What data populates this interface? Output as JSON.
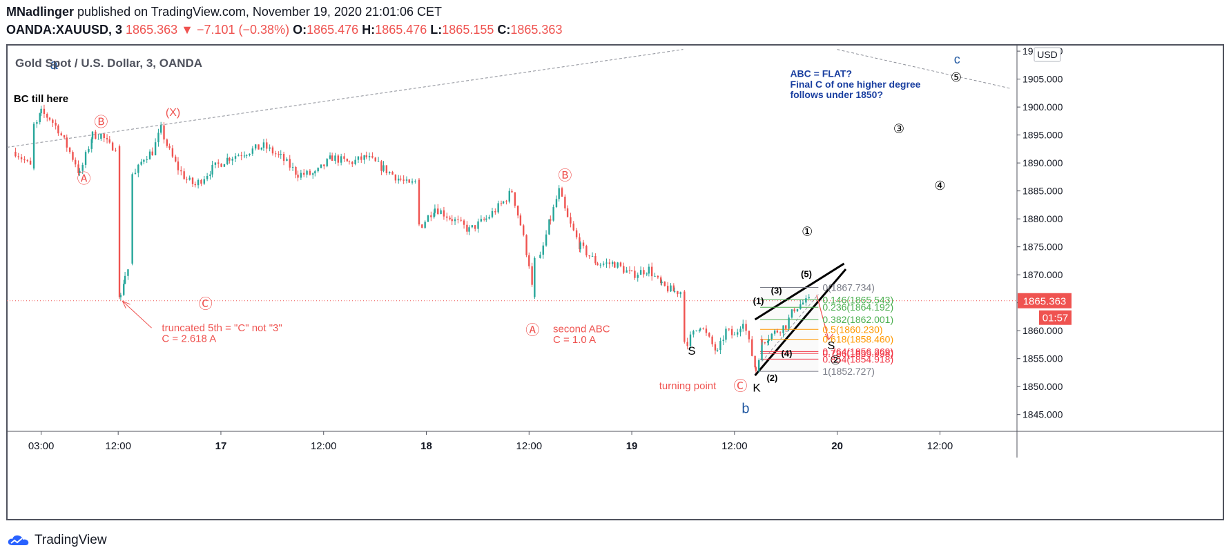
{
  "header": {
    "author": "MNadlinger",
    "published_text": "published on TradingView.com, November 19, 2020 21:01:06 CET",
    "symbol": "OANDA:XAUUSD, 3",
    "last": "1865.363",
    "change": "−7.101 (−0.38%)",
    "open_label": "O:",
    "open": "1865.476",
    "high_label": "H:",
    "high": "1865.476",
    "low_label": "L:",
    "low": "1865.155",
    "close_label": "C:",
    "close": "1865.363"
  },
  "chart_data": {
    "type": "candlestick",
    "title": "Gold Spot / U.S. Dollar, 3, OANDA",
    "currency": "USD",
    "ylim": [
      1842,
      1911
    ],
    "y_ticks": [
      "1845.000",
      "1850.000",
      "1855.000",
      "1860.000",
      "1865.000",
      "1870.000",
      "1875.000",
      "1880.000",
      "1885.000",
      "1890.000",
      "1895.000",
      "1900.000",
      "1905.000",
      "1910.000"
    ],
    "x_ticks": [
      {
        "label": "03:00",
        "t": 3
      },
      {
        "label": "12:00",
        "t": 12
      },
      {
        "label": "17",
        "t": 24
      },
      {
        "label": "12:00",
        "t": 36
      },
      {
        "label": "18",
        "t": 48
      },
      {
        "label": "12:00",
        "t": 60
      },
      {
        "label": "19",
        "t": 72
      },
      {
        "label": "12:00",
        "t": 84
      },
      {
        "label": "20",
        "t": 96
      },
      {
        "label": "12:00",
        "t": 108
      }
    ],
    "price_path": [
      [
        0,
        1892
      ],
      [
        2,
        1889
      ],
      [
        2.5,
        1897
      ],
      [
        3,
        1899
      ],
      [
        4,
        1898
      ],
      [
        5,
        1896
      ],
      [
        6,
        1893
      ],
      [
        7,
        1890
      ],
      [
        7.5,
        1888
      ],
      [
        9,
        1895
      ],
      [
        10,
        1895
      ],
      [
        11,
        1893
      ],
      [
        12,
        1893
      ],
      [
        12.3,
        1866
      ],
      [
        12.8,
        1870
      ],
      [
        13.5,
        1872
      ],
      [
        14,
        1888
      ],
      [
        15,
        1891
      ],
      [
        16,
        1892
      ],
      [
        17,
        1896
      ],
      [
        18,
        1892
      ],
      [
        19,
        1889
      ],
      [
        20,
        1887
      ],
      [
        21,
        1886
      ],
      [
        23,
        1889
      ],
      [
        25,
        1891
      ],
      [
        27,
        1892
      ],
      [
        29,
        1893
      ],
      [
        31,
        1891
      ],
      [
        33,
        1888
      ],
      [
        35,
        1888
      ],
      [
        37,
        1891
      ],
      [
        39,
        1890
      ],
      [
        41,
        1891
      ],
      [
        43,
        1889
      ],
      [
        45,
        1887
      ],
      [
        46,
        1886
      ],
      [
        47,
        1887
      ],
      [
        47.5,
        1879
      ],
      [
        49,
        1882
      ],
      [
        51,
        1880
      ],
      [
        53,
        1878
      ],
      [
        55,
        1880
      ],
      [
        57,
        1883
      ],
      [
        58,
        1885
      ],
      [
        59,
        1879
      ],
      [
        60,
        1872
      ],
      [
        60.5,
        1866
      ],
      [
        61.3,
        1873
      ],
      [
        62.5,
        1880
      ],
      [
        63.5,
        1885
      ],
      [
        64.5,
        1880
      ],
      [
        66,
        1875
      ],
      [
        68,
        1872
      ],
      [
        70,
        1872
      ],
      [
        72,
        1870
      ],
      [
        74,
        1871
      ],
      [
        75.5,
        1868
      ],
      [
        77,
        1867
      ],
      [
        78,
        1867
      ],
      [
        78.5,
        1858
      ],
      [
        80,
        1861
      ],
      [
        82,
        1856
      ],
      [
        83,
        1860
      ],
      [
        84,
        1859
      ],
      [
        85,
        1862
      ],
      [
        86.5,
        1853
      ],
      [
        87.2,
        1858
      ],
      [
        88,
        1859
      ],
      [
        89,
        1860
      ],
      [
        90,
        1861
      ],
      [
        91,
        1864
      ],
      [
        92,
        1865
      ],
      [
        93,
        1865.4
      ]
    ],
    "last_price": "1865.363",
    "countdown": "01:57",
    "fibonacci": [
      {
        "label": "0(1867.734)",
        "price": 1867.734,
        "color": "#787b86"
      },
      {
        "label": "0.146(1865.543)",
        "price": 1865.543,
        "color": "#4caf50"
      },
      {
        "label": "0.236(1864.192)",
        "price": 1864.192,
        "color": "#4caf50"
      },
      {
        "label": "0.382(1862.001)",
        "price": 1862.001,
        "color": "#4caf50"
      },
      {
        "label": "0.5(1860.230)",
        "price": 1860.23,
        "color": "#ff9800"
      },
      {
        "label": "0.618(1858.460)",
        "price": 1858.46,
        "color": "#ff9800"
      },
      {
        "label": "0.764(1856.269)",
        "price": 1856.269,
        "color": "#f23645"
      },
      {
        "label": "0.786(1855.938)",
        "price": 1855.938,
        "color": "#f23645"
      },
      {
        "label": "0.854(1854.918)",
        "price": 1854.918,
        "color": "#f23645"
      },
      {
        "label": "1(1852.727)",
        "price": 1852.727,
        "color": "#787b86"
      }
    ],
    "annotations": [
      {
        "text": "a",
        "t": 4.5,
        "y": 1906.8,
        "color": "#1e56a0",
        "size": 20
      },
      {
        "text": "BC till here",
        "t": -0.2,
        "y": 1900.9,
        "color": "#000000",
        "size": 15,
        "anchor": "start",
        "bold": true
      },
      {
        "text": "Ⓑ",
        "t": 10,
        "y": 1896.5,
        "color": "#ef5350",
        "size": 20
      },
      {
        "text": "(X)",
        "t": 18.4,
        "y": 1898.4,
        "color": "#ef5350",
        "size": 16
      },
      {
        "text": "Ⓐ",
        "t": 8,
        "y": 1886.4,
        "color": "#ef5350",
        "size": 20
      },
      {
        "text": "Ⓒ",
        "t": 22.2,
        "y": 1864.0,
        "color": "#ef5350",
        "size": 20
      },
      {
        "text": "truncated 5th = \"C\" not \"3\"",
        "t": 17.1,
        "y": 1859.9,
        "color": "#ef5350",
        "size": 15,
        "anchor": "start"
      },
      {
        "text": "C = 2.618 A",
        "t": 17.1,
        "y": 1858.0,
        "color": "#ef5350",
        "size": 15,
        "anchor": "start"
      },
      {
        "text": "Ⓑ",
        "t": 64.2,
        "y": 1886.9,
        "color": "#ef5350",
        "size": 20
      },
      {
        "text": "Ⓐ",
        "t": 60.4,
        "y": 1859.3,
        "color": "#ef5350",
        "size": 20
      },
      {
        "text": "second ABC",
        "t": 62.8,
        "y": 1859.7,
        "color": "#ef5350",
        "size": 15,
        "anchor": "start"
      },
      {
        "text": "C = 1.0 A",
        "t": 62.8,
        "y": 1857.8,
        "color": "#ef5350",
        "size": 15,
        "anchor": "start"
      },
      {
        "text": "turning point",
        "t": 75.2,
        "y": 1849.5,
        "color": "#ef5350",
        "size": 15,
        "anchor": "start"
      },
      {
        "text": "Ⓒ",
        "t": 84.7,
        "y": 1849.3,
        "color": "#ef5350",
        "size": 20
      },
      {
        "text": "S",
        "t": 79.0,
        "y": 1855.7,
        "color": "#000000",
        "size": 17
      },
      {
        "text": "K",
        "t": 86.6,
        "y": 1849.1,
        "color": "#000000",
        "size": 17
      },
      {
        "text": "b",
        "t": 85.3,
        "y": 1845.3,
        "color": "#1e56a0",
        "size": 20
      },
      {
        "text": "(1)",
        "t": 86.8,
        "y": 1864.8,
        "color": "#000000",
        "size": 13,
        "bold": true
      },
      {
        "text": "(3)",
        "t": 88.9,
        "y": 1866.6,
        "color": "#000000",
        "size": 13,
        "bold": true
      },
      {
        "text": "(5)",
        "t": 92.4,
        "y": 1869.6,
        "color": "#000000",
        "size": 13,
        "bold": true
      },
      {
        "text": "(4)",
        "t": 90.1,
        "y": 1855.4,
        "color": "#000000",
        "size": 13,
        "bold": true
      },
      {
        "text": "(2)",
        "t": 88.4,
        "y": 1851.0,
        "color": "#000000",
        "size": 13,
        "bold": true
      },
      {
        "text": "S",
        "t": 95.3,
        "y": 1856.7,
        "color": "#000000",
        "size": 16
      },
      {
        "text": "②",
        "t": 95.8,
        "y": 1854.0,
        "color": "#000000",
        "size": 18
      },
      {
        "text": "①",
        "t": 92.5,
        "y": 1877.0,
        "color": "#000000",
        "size": 18
      },
      {
        "text": "③",
        "t": 103.2,
        "y": 1895.4,
        "color": "#000000",
        "size": 18
      },
      {
        "text": "④",
        "t": 108.0,
        "y": 1885.2,
        "color": "#000000",
        "size": 18
      },
      {
        "text": "⑤",
        "t": 109.9,
        "y": 1904.6,
        "color": "#000000",
        "size": 18
      },
      {
        "text": "c",
        "t": 110.0,
        "y": 1907.8,
        "color": "#1e56a0",
        "size": 18
      },
      {
        "text": "ABC = FLAT?",
        "t": 90.5,
        "y": 1905.4,
        "color": "#1a3fa0",
        "size": 14,
        "anchor": "start",
        "bold": true
      },
      {
        "text": "Final C of one higher degree",
        "t": 90.5,
        "y": 1903.5,
        "color": "#1a3fa0",
        "size": 14,
        "anchor": "start",
        "bold": true
      },
      {
        "text": "follows under 1850?",
        "t": 90.5,
        "y": 1901.6,
        "color": "#1a3fa0",
        "size": 14,
        "anchor": "start",
        "bold": true
      }
    ]
  },
  "footer": {
    "brand": "TradingView"
  }
}
